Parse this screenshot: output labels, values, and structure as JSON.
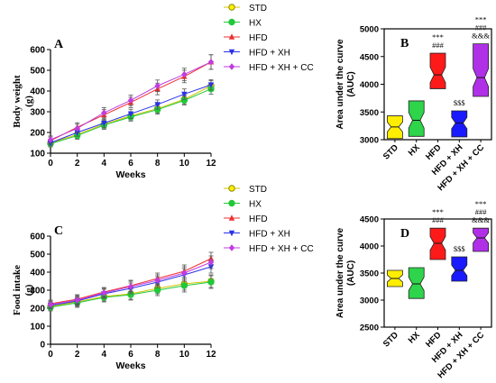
{
  "colors": {
    "STD": "#d4c400",
    "HX": "#22c83a",
    "HFD": "#ee3030",
    "HFD + XH": "#2a32e6",
    "HFD + XH + CC": "#c03ce0",
    "notch_STD": "#ffee00",
    "notch_HX": "#2ed44a",
    "notch_HFD": "#ff1a1a",
    "notch_HFD_XH": "#1a1aff",
    "notch_HFD_XH_CC": "#b030e8"
  },
  "chart_data": [
    {
      "id": "A",
      "type": "line",
      "panel_label": "A",
      "xlabel": "Weeks",
      "ylabel": "Body weight (g)",
      "xticks": [
        0,
        2,
        4,
        6,
        8,
        10,
        12
      ],
      "yticks": [
        100,
        200,
        300,
        400,
        500,
        600
      ],
      "xlim": [
        0,
        12
      ],
      "ylim": [
        100,
        600
      ],
      "x": [
        0,
        2,
        4,
        6,
        8,
        10,
        12
      ],
      "series": [
        {
          "name": "STD",
          "values": [
            150,
            190,
            240,
            280,
            315,
            360,
            425
          ],
          "err": [
            15,
            18,
            20,
            20,
            22,
            22,
            25
          ],
          "marker": "circle-open"
        },
        {
          "name": "HX",
          "values": [
            145,
            185,
            235,
            275,
            310,
            355,
            410
          ],
          "err": [
            15,
            18,
            20,
            20,
            22,
            22,
            25
          ],
          "marker": "circle"
        },
        {
          "name": "HFD",
          "values": [
            160,
            225,
            285,
            345,
            410,
            470,
            540
          ],
          "err": [
            18,
            22,
            25,
            25,
            28,
            30,
            35
          ],
          "marker": "triangle-up"
        },
        {
          "name": "HFD + XH",
          "values": [
            150,
            200,
            245,
            290,
            335,
            385,
            430
          ],
          "err": [
            15,
            18,
            20,
            22,
            22,
            25,
            25
          ],
          "marker": "triangle-down"
        },
        {
          "name": "HFD + XH + CC",
          "values": [
            165,
            220,
            295,
            355,
            425,
            480,
            540
          ],
          "err": [
            18,
            20,
            25,
            25,
            28,
            30,
            35
          ],
          "marker": "diamond"
        }
      ]
    },
    {
      "id": "B",
      "type": "box",
      "panel_label": "B",
      "ylabel": "Area under the curve (AUC)",
      "yticks": [
        3000,
        3500,
        4000,
        4500,
        5000
      ],
      "ylim": [
        3000,
        5000
      ],
      "categories": [
        "STD",
        "HX",
        "HFD",
        "HFD + XH",
        "HFD + XH + CC"
      ],
      "boxes": [
        {
          "min": 3020,
          "q1": 3020,
          "median": 3230,
          "q3": 3430,
          "max": 3430
        },
        {
          "min": 3060,
          "q1": 3060,
          "median": 3350,
          "q3": 3700,
          "max": 3700
        },
        {
          "min": 3920,
          "q1": 3920,
          "median": 4170,
          "q3": 4560,
          "max": 4560
        },
        {
          "min": 3050,
          "q1": 3050,
          "median": 3300,
          "q3": 3520,
          "max": 3520
        },
        {
          "min": 3780,
          "q1": 3780,
          "median": 4120,
          "q3": 4730,
          "max": 4730
        }
      ],
      "annotations": [
        {
          "category": "HFD",
          "lines": [
            "***",
            "###"
          ]
        },
        {
          "category": "HFD + XH",
          "lines": [
            "$$$"
          ]
        },
        {
          "category": "HFD + XH + CC",
          "lines": [
            "***",
            "###",
            "&&&"
          ]
        }
      ]
    },
    {
      "id": "C",
      "type": "line",
      "panel_label": "C",
      "xlabel": "Weeks",
      "ylabel": "Food intake (g)",
      "xticks": [
        0,
        2,
        4,
        6,
        8,
        10,
        12
      ],
      "yticks": [
        0,
        100,
        200,
        300,
        400,
        500,
        600
      ],
      "xlim": [
        0,
        12
      ],
      "ylim": [
        0,
        600
      ],
      "x": [
        0,
        2,
        4,
        6,
        8,
        10,
        12
      ],
      "series": [
        {
          "name": "STD",
          "values": [
            210,
            235,
            265,
            280,
            310,
            335,
            350
          ],
          "err": [
            20,
            25,
            25,
            30,
            30,
            35,
            35
          ],
          "marker": "circle-open"
        },
        {
          "name": "HX",
          "values": [
            205,
            230,
            260,
            275,
            300,
            325,
            345
          ],
          "err": [
            20,
            25,
            25,
            30,
            30,
            35,
            35
          ],
          "marker": "circle"
        },
        {
          "name": "HFD",
          "values": [
            225,
            250,
            290,
            325,
            365,
            405,
            475
          ],
          "err": [
            20,
            25,
            25,
            30,
            30,
            35,
            35
          ],
          "marker": "triangle-up"
        },
        {
          "name": "HFD + XH",
          "values": [
            215,
            240,
            280,
            310,
            345,
            385,
            430
          ],
          "err": [
            20,
            25,
            25,
            30,
            30,
            35,
            35
          ],
          "marker": "triangle-down"
        },
        {
          "name": "HFD + XH + CC",
          "values": [
            220,
            245,
            285,
            320,
            355,
            395,
            455
          ],
          "err": [
            20,
            25,
            25,
            30,
            30,
            35,
            35
          ],
          "marker": "diamond"
        }
      ]
    },
    {
      "id": "D",
      "type": "box",
      "panel_label": "D",
      "ylabel": "Area under the curve (AUC)",
      "yticks": [
        2500,
        3000,
        3500,
        4000,
        4500
      ],
      "ylim": [
        2500,
        4500
      ],
      "categories": [
        "STD",
        "HX",
        "HFD",
        "HFD + XH",
        "HFD + XH + CC"
      ],
      "boxes": [
        {
          "min": 3250,
          "q1": 3250,
          "median": 3400,
          "q3": 3550,
          "max": 3550
        },
        {
          "min": 3030,
          "q1": 3030,
          "median": 3300,
          "q3": 3600,
          "max": 3600
        },
        {
          "min": 3750,
          "q1": 3750,
          "median": 4050,
          "q3": 4330,
          "max": 4330
        },
        {
          "min": 3350,
          "q1": 3350,
          "median": 3550,
          "q3": 3800,
          "max": 3800
        },
        {
          "min": 3900,
          "q1": 3900,
          "median": 4150,
          "q3": 4330,
          "max": 4330
        }
      ],
      "annotations": [
        {
          "category": "HFD",
          "lines": [
            "***",
            "###"
          ]
        },
        {
          "category": "HFD + XH",
          "lines": [
            "$$$"
          ]
        },
        {
          "category": "HFD + XH + CC",
          "lines": [
            "***",
            "###",
            "&&&"
          ]
        }
      ]
    }
  ],
  "legend_labels": [
    "STD",
    "HX",
    "HFD",
    "HFD + XH",
    "HFD + XH + CC"
  ]
}
